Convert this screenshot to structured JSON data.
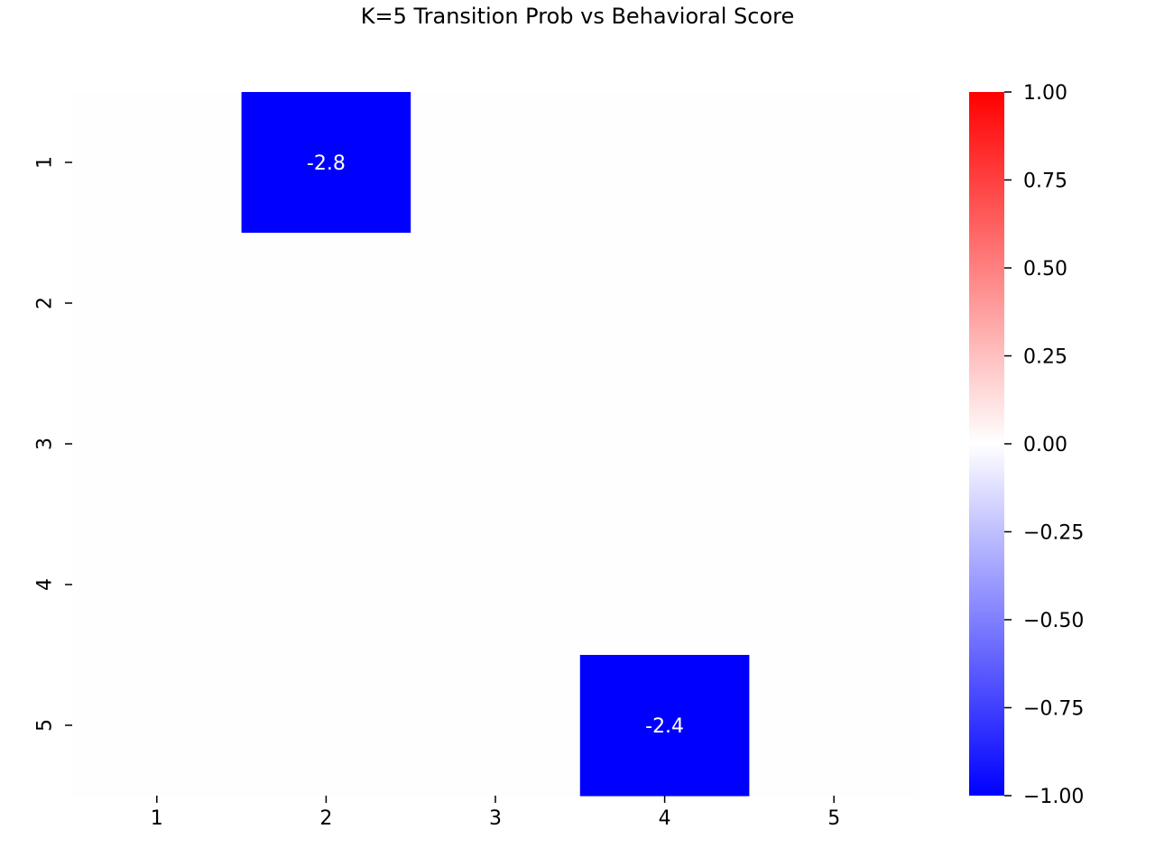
{
  "chart_data": {
    "type": "heatmap",
    "title": "K=5 Transition Prob vs Behavioral Score",
    "xlabel": "",
    "ylabel": "",
    "x_categories": [
      "1",
      "2",
      "3",
      "4",
      "5"
    ],
    "y_categories": [
      "1",
      "2",
      "3",
      "4",
      "5"
    ],
    "values": [
      [
        0,
        -2.8,
        0,
        0,
        0
      ],
      [
        0,
        0,
        0,
        0,
        0
      ],
      [
        0,
        0,
        0,
        0,
        0
      ],
      [
        0,
        0,
        0,
        0,
        0
      ],
      [
        0,
        0,
        0,
        -2.4,
        0
      ]
    ],
    "annotations": [
      {
        "row": 0,
        "col": 1,
        "text": "-2.8"
      },
      {
        "row": 4,
        "col": 3,
        "text": "-2.4"
      }
    ],
    "colorbar": {
      "range": [
        -1.0,
        1.0
      ],
      "ticks": [
        "1.00",
        "0.75",
        "0.50",
        "0.25",
        "0.00",
        "−0.25",
        "−0.50",
        "−0.75",
        "−1.00"
      ],
      "tick_values": [
        1.0,
        0.75,
        0.5,
        0.25,
        0.0,
        -0.25,
        -0.5,
        -0.75,
        -1.0
      ],
      "colors": {
        "low": "#0000ff",
        "mid": "#ffffff",
        "high": "#ff0000"
      }
    },
    "grid": false
  }
}
